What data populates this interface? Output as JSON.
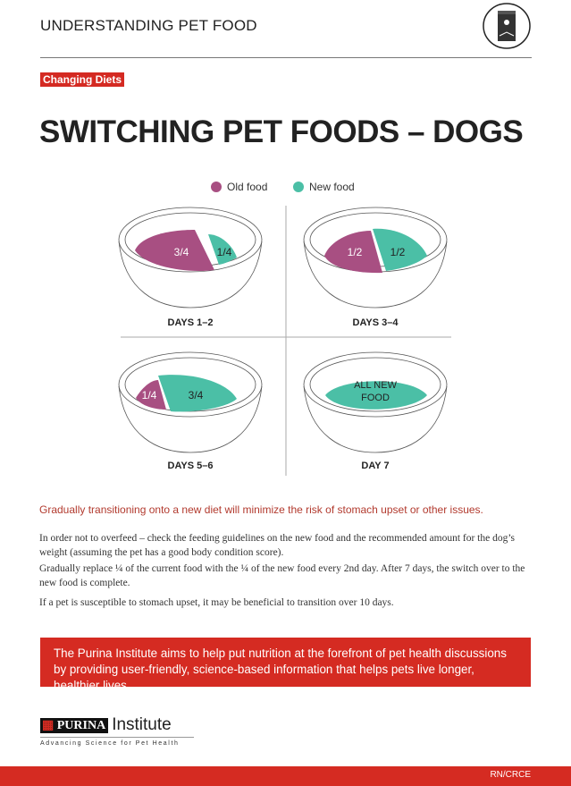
{
  "header": {
    "title": "UNDERSTANDING PET FOOD",
    "icon": "pet-food-bag-icon"
  },
  "tag": "Changing Diets",
  "title": "SWITCHING PET FOODS – DOGS",
  "legend": {
    "old": "Old food",
    "new": "New food"
  },
  "colors": {
    "old": "#a84f82",
    "new": "#4bbfa6",
    "accent": "#d52b22"
  },
  "bowls": [
    {
      "label": "DAYS 1–2",
      "old": "3/4",
      "new": "1/4"
    },
    {
      "label": "DAYS 3–4",
      "old": "1/2",
      "new": "1/2"
    },
    {
      "label": "DAYS 5–6",
      "old": "1/4",
      "new": "3/4"
    },
    {
      "label": "DAY 7",
      "new_line1": "ALL NEW",
      "new_line2": "FOOD"
    }
  ],
  "lead": "Gradually transitioning onto a new diet will minimize the risk of stomach upset or other issues.",
  "paragraphs": [
    "In order not to overfeed – check the feeding guidelines on the new food and the recommended amount for the dog’s weight (assuming the pet has a good body condition score).",
    "Gradually replace ¼ of the current food with the ¼ of the new food every 2nd day. After 7 days, the switch over to the new food is complete.",
    "If a pet is susceptible to stomach upset, it may be beneficial to transition over 10 days."
  ],
  "banner": "The Purina Institute aims to help put nutrition at the forefront of pet health discussions by providing user-friendly, science-based information that helps pets live longer, healthier lives.",
  "logo": {
    "brand": "PURINA",
    "name": "Institute",
    "tagline": "Advancing Science for Pet Health"
  },
  "footer_code": "RN/CRCE"
}
